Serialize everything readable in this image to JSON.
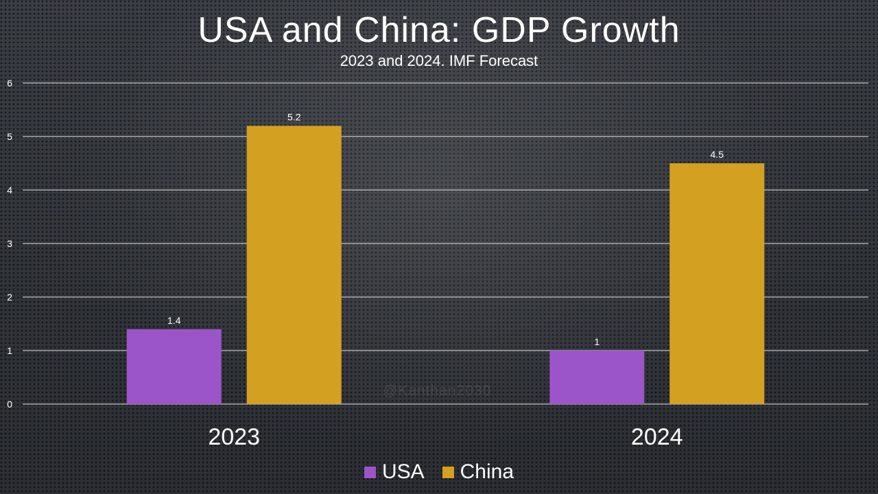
{
  "chart_data": {
    "type": "bar",
    "title": "USA and China: GDP Growth",
    "subtitle": "2023 and 2024. IMF Forecast",
    "categories": [
      "2023",
      "2024"
    ],
    "series": [
      {
        "name": "USA",
        "color": "#9b55c9",
        "values": [
          1.4,
          1
        ],
        "labels": [
          "1.4",
          "1"
        ]
      },
      {
        "name": "China",
        "color": "#d4a021",
        "values": [
          5.2,
          4.5
        ],
        "labels": [
          "5.2",
          "4.5"
        ]
      }
    ],
    "yticks": [
      "0",
      "1",
      "2",
      "3",
      "4",
      "5",
      "6"
    ],
    "ylim": [
      0,
      6
    ],
    "grid": true,
    "legend_position": "bottom"
  },
  "watermark": "@Kanthan2030"
}
